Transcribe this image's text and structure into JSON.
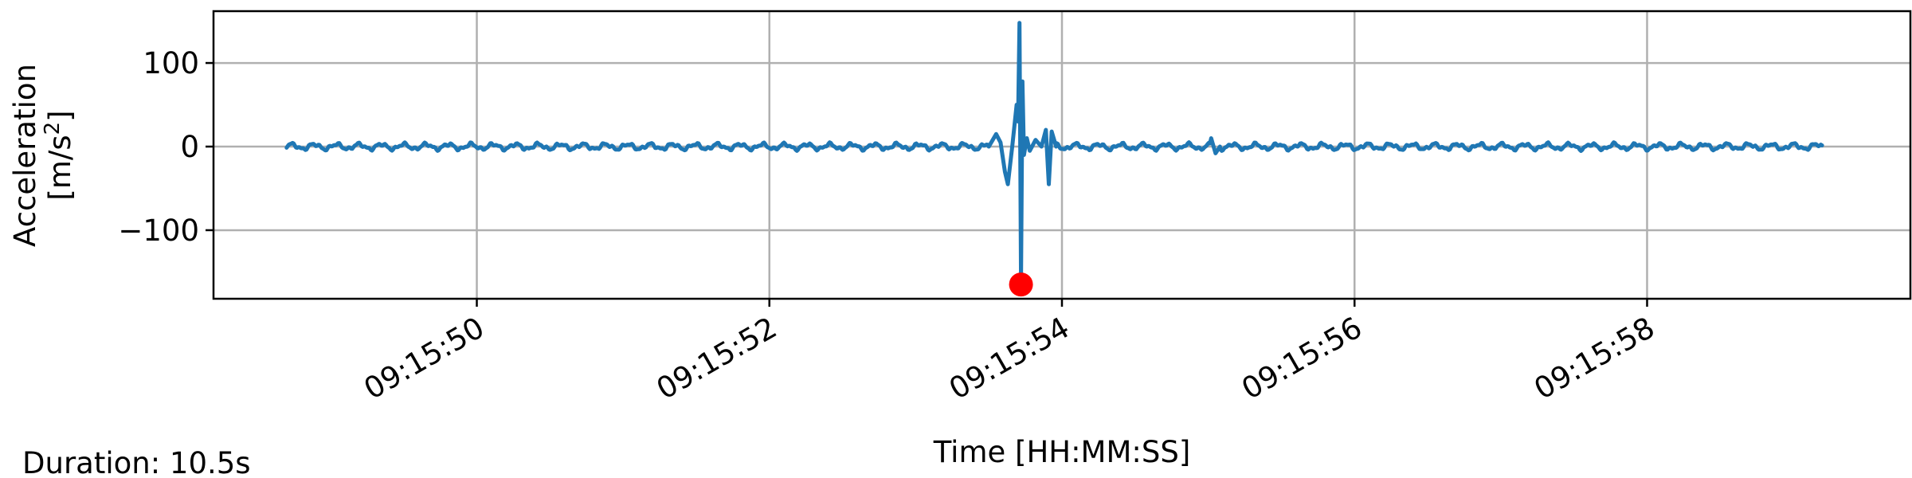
{
  "chart_data": {
    "type": "line",
    "title": "",
    "xlabel": "Time [HH:MM:SS]",
    "ylabel_line1": "Acceleration",
    "ylabel_line2_prefix": "[m/s",
    "ylabel_line2_sup": "2",
    "ylabel_line2_suffix": "]",
    "xlim": [
      "09:15:48.2",
      "09:15:59.8"
    ],
    "ylim": [
      -182,
      162
    ],
    "grid": true,
    "x_ticks": [
      {
        "time": "09:15:50",
        "label": "09:15:50"
      },
      {
        "time": "09:15:52",
        "label": "09:15:52"
      },
      {
        "time": "09:15:54",
        "label": "09:15:54"
      },
      {
        "time": "09:15:56",
        "label": "09:15:56"
      },
      {
        "time": "09:15:58",
        "label": "09:15:58"
      }
    ],
    "y_ticks": [
      {
        "value": 100,
        "label": "100"
      },
      {
        "value": 0,
        "label": "0"
      },
      {
        "value": -100,
        "label": "−100"
      }
    ],
    "series_color": "#1f77b4",
    "marker_color": "#ff0000",
    "time_range": [
      "09:15:48.7",
      "09:15:59.2"
    ],
    "series_points": [
      [
        "09:15:53.50",
        0
      ],
      [
        "09:15:53.55",
        15
      ],
      [
        "09:15:53.58",
        5
      ],
      [
        "09:15:53.61",
        -30
      ],
      [
        "09:15:53.63",
        -45
      ],
      [
        "09:15:53.66",
        0
      ],
      [
        "09:15:53.69",
        50
      ],
      [
        "09:15:53.70",
        30
      ],
      [
        "09:15:53.71",
        148
      ],
      [
        "09:15:53.72",
        -160
      ],
      [
        "09:15:53.73",
        78
      ],
      [
        "09:15:53.74",
        -10
      ],
      [
        "09:15:53.76",
        10
      ],
      [
        "09:15:53.78",
        -5
      ],
      [
        "09:15:53.82",
        8
      ],
      [
        "09:15:53.86",
        0
      ],
      [
        "09:15:53.89",
        20
      ],
      [
        "09:15:53.91",
        -45
      ],
      [
        "09:15:53.93",
        18
      ],
      [
        "09:15:53.96",
        0
      ],
      [
        "09:15:55.02",
        10
      ],
      [
        "09:15:55.05",
        -8
      ],
      [
        "09:15:55.08",
        0
      ]
    ],
    "markers": [
      {
        "time": "09:15:53.72",
        "value": -165
      }
    ]
  },
  "footer": {
    "duration": "Duration: 10.5s"
  }
}
